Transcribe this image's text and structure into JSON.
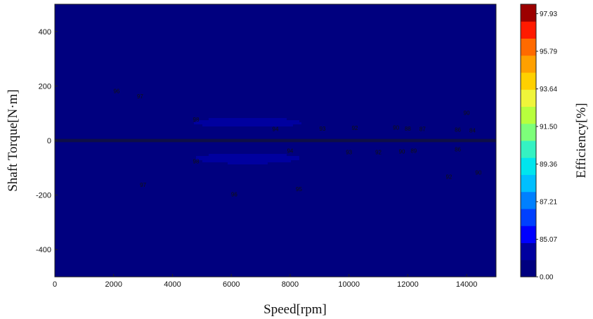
{
  "chart_data": {
    "type": "heatmap",
    "title": "",
    "xlabel": "Speed[rpm]",
    "ylabel": "Shaft Torque[N·m]",
    "xlim": [
      0,
      15000
    ],
    "ylim": [
      -500,
      500
    ],
    "x_ticks": [
      0,
      2000,
      4000,
      6000,
      8000,
      10000,
      12000,
      14000
    ],
    "y_ticks": [
      -400,
      -200,
      0,
      200,
      400
    ],
    "peak_region": {
      "speed": 4300,
      "torque": 70,
      "efficiency": 98
    },
    "colorbar": {
      "label": "Efficiency[%]",
      "tick_labels": [
        "0.00",
        "85.07",
        "87.21",
        "89.36",
        "91.50",
        "93.64",
        "95.79",
        "97.93"
      ],
      "levels": [
        {
          "value": 0,
          "color": "#00007f"
        },
        {
          "value": 84,
          "color": "#00009f"
        },
        {
          "value": 85,
          "color": "#0000ff"
        },
        {
          "value": 86,
          "color": "#0040ff"
        },
        {
          "value": 87,
          "color": "#0080ff"
        },
        {
          "value": 88,
          "color": "#00bfff"
        },
        {
          "value": 89,
          "color": "#00e5ee"
        },
        {
          "value": 90,
          "color": "#35f2c2"
        },
        {
          "value": 91,
          "color": "#7dff7a"
        },
        {
          "value": 92,
          "color": "#b8ff3d"
        },
        {
          "value": 93,
          "color": "#f0f53a"
        },
        {
          "value": 94,
          "color": "#ffd000"
        },
        {
          "value": 95,
          "color": "#ffa000"
        },
        {
          "value": 96,
          "color": "#ff6a00"
        },
        {
          "value": 97,
          "color": "#ff1a00"
        },
        {
          "value": 98,
          "color": "#9c0000"
        }
      ]
    },
    "contour_labels": [
      {
        "text": "96",
        "speed": 2100,
        "torque": 180
      },
      {
        "text": "97",
        "speed": 2900,
        "torque": 160
      },
      {
        "text": "98",
        "speed": 4800,
        "torque": 75
      },
      {
        "text": "94",
        "speed": 7500,
        "torque": 40
      },
      {
        "text": "93",
        "speed": 9100,
        "torque": 42
      },
      {
        "text": "92",
        "speed": 10200,
        "torque": 44
      },
      {
        "text": "90",
        "speed": 11600,
        "torque": 45
      },
      {
        "text": "88",
        "speed": 12000,
        "torque": 42
      },
      {
        "text": "87",
        "speed": 12500,
        "torque": 40
      },
      {
        "text": "86",
        "speed": 13700,
        "torque": 38
      },
      {
        "text": "84",
        "speed": 14200,
        "torque": 35
      },
      {
        "text": "90",
        "speed": 14000,
        "torque": 100
      },
      {
        "text": "94",
        "speed": 8000,
        "torque": -40
      },
      {
        "text": "93",
        "speed": 10000,
        "torque": -45
      },
      {
        "text": "92",
        "speed": 11000,
        "torque": -45
      },
      {
        "text": "90",
        "speed": 11800,
        "torque": -42
      },
      {
        "text": "89",
        "speed": 12200,
        "torque": -40
      },
      {
        "text": "86",
        "speed": 13700,
        "torque": -35
      },
      {
        "text": "98",
        "speed": 4800,
        "torque": -78
      },
      {
        "text": "97",
        "speed": 3000,
        "torque": -165
      },
      {
        "text": "96",
        "speed": 6100,
        "torque": -200
      },
      {
        "text": "95",
        "speed": 8300,
        "torque": -180
      },
      {
        "text": "92",
        "speed": 13400,
        "torque": -135
      },
      {
        "text": "90",
        "speed": 14400,
        "torque": -120
      }
    ]
  }
}
